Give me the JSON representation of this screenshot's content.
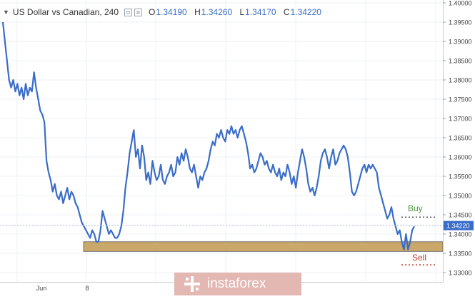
{
  "header": {
    "title": "US Dollar vs Canadian, 240",
    "ohlc": [
      {
        "key": "O",
        "value": "1.34190"
      },
      {
        "key": "H",
        "value": "1.34260"
      },
      {
        "key": "L",
        "value": "1.34170"
      },
      {
        "key": "C",
        "value": "1.34220"
      }
    ]
  },
  "annotations": {
    "buy_label": "Buy",
    "sell_label": "Sell",
    "buy_color": "#4a8f3c",
    "sell_color": "#c0392b",
    "zone_color": "#c9a86a"
  },
  "watermark": {
    "text": "instaforex",
    "color": "#e3b7b2"
  },
  "chart_data": {
    "type": "line",
    "line_color": "#3a6dc9",
    "current_price": "1.34220",
    "ylim": [
      1.33,
      1.4
    ],
    "y_ticks": [
      "1.40000",
      "1.39500",
      "1.39000",
      "1.38500",
      "1.38000",
      "1.37500",
      "1.37000",
      "1.36500",
      "1.36000",
      "1.35500",
      "1.35000",
      "1.34500",
      "1.34000",
      "1.33500",
      "1.33000"
    ],
    "x_ticks": [
      "Jun",
      "8"
    ],
    "support_zone": [
      1.3355,
      1.338
    ],
    "buy_level": 1.3444,
    "sell_level": 1.332,
    "grid": true,
    "series": [
      {
        "values": [
          1.395,
          1.39,
          1.385,
          1.38,
          1.378,
          1.38,
          1.377,
          1.379,
          1.376,
          1.378,
          1.375,
          1.379,
          1.376,
          1.378,
          1.377,
          1.382,
          1.378,
          1.375,
          1.372,
          1.371,
          1.369,
          1.359,
          1.356,
          1.354,
          1.351,
          1.353,
          1.35,
          1.349,
          1.351,
          1.348,
          1.35,
          1.352,
          1.349,
          1.351,
          1.35,
          1.348,
          1.347,
          1.345,
          1.343,
          1.342,
          1.341,
          1.34,
          1.339,
          1.341,
          1.34,
          1.338,
          1.338,
          1.341,
          1.346,
          1.344,
          1.342,
          1.34,
          1.341,
          1.34,
          1.339,
          1.339,
          1.34,
          1.342,
          1.346,
          1.352,
          1.356,
          1.361,
          1.364,
          1.367,
          1.36,
          1.362,
          1.357,
          1.363,
          1.36,
          1.354,
          1.356,
          1.353,
          1.359,
          1.356,
          1.354,
          1.355,
          1.358,
          1.354,
          1.353,
          1.355,
          1.356,
          1.358,
          1.355,
          1.356,
          1.36,
          1.358,
          1.361,
          1.359,
          1.362,
          1.36,
          1.357,
          1.356,
          1.358,
          1.355,
          1.352,
          1.355,
          1.354,
          1.356,
          1.357,
          1.359,
          1.362,
          1.364,
          1.363,
          1.366,
          1.365,
          1.367,
          1.365,
          1.364,
          1.367,
          1.366,
          1.368,
          1.366,
          1.367,
          1.365,
          1.367,
          1.368,
          1.366,
          1.364,
          1.361,
          1.357,
          1.358,
          1.356,
          1.357,
          1.359,
          1.361,
          1.36,
          1.358,
          1.359,
          1.357,
          1.356,
          1.358,
          1.356,
          1.355,
          1.357,
          1.354,
          1.356,
          1.355,
          1.358,
          1.356,
          1.353,
          1.355,
          1.352,
          1.356,
          1.359,
          1.362,
          1.36,
          1.357,
          1.353,
          1.351,
          1.352,
          1.35,
          1.352,
          1.355,
          1.359,
          1.361,
          1.362,
          1.36,
          1.357,
          1.36,
          1.362,
          1.358,
          1.359,
          1.361,
          1.362,
          1.363,
          1.362,
          1.36,
          1.356,
          1.351,
          1.35,
          1.351,
          1.353,
          1.355,
          1.357,
          1.358,
          1.356,
          1.358,
          1.357,
          1.358,
          1.357,
          1.356,
          1.352,
          1.35,
          1.348,
          1.346,
          1.344,
          1.345,
          1.347,
          1.344,
          1.342,
          1.34,
          1.341,
          1.338,
          1.336,
          1.34,
          1.336,
          1.338,
          1.341,
          1.342
        ]
      }
    ]
  }
}
